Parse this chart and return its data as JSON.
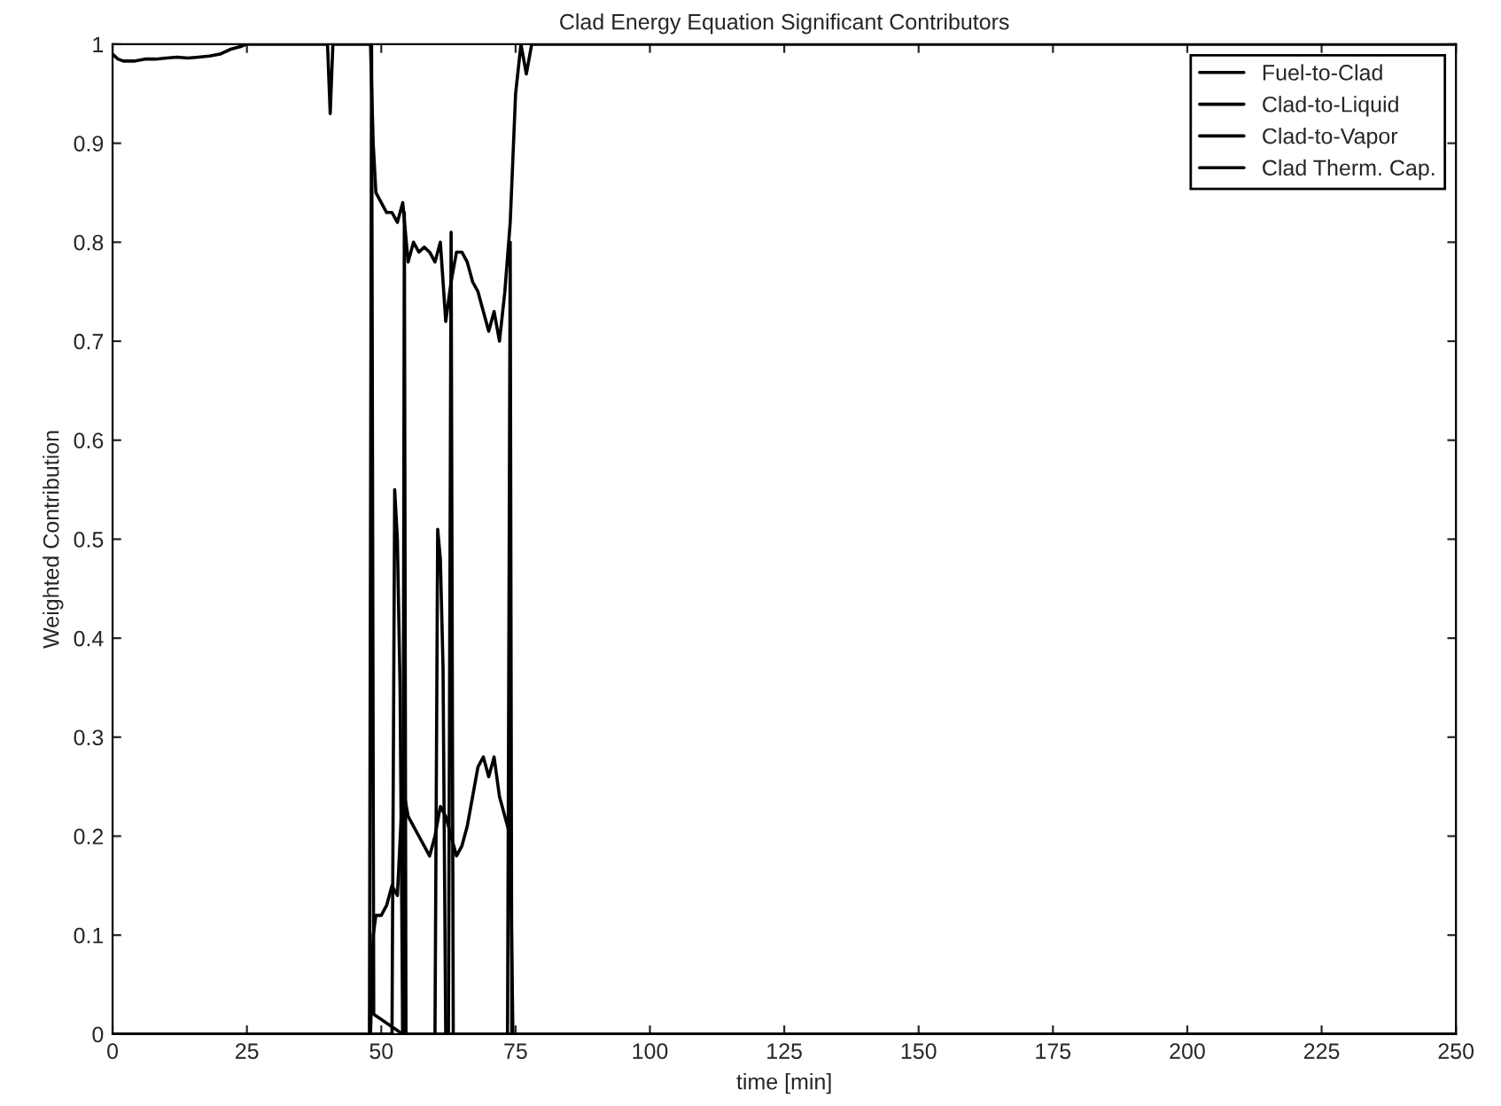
{
  "chart_data": {
    "type": "line",
    "title": "Clad Energy Equation Significant Contributors",
    "xlabel": "time [min]",
    "ylabel": "Weighted Contribution",
    "xlim": [
      0,
      250
    ],
    "ylim": [
      0,
      1
    ],
    "xticks": [
      0,
      25,
      50,
      75,
      100,
      125,
      150,
      175,
      200,
      225,
      250
    ],
    "yticks": [
      0,
      0.1,
      0.2,
      0.3,
      0.4,
      0.5,
      0.6,
      0.7,
      0.8,
      0.9,
      1
    ],
    "grid": false,
    "legend": "top right",
    "line_style": "solid",
    "marker": "none",
    "series": [
      {
        "name": "Fuel-to-Clad",
        "color": "#000000",
        "x": [
          0,
          1,
          2,
          4,
          6,
          8,
          10,
          12,
          14,
          16,
          18,
          20,
          22,
          24,
          25,
          40,
          40.5,
          41,
          48,
          48.5,
          49,
          50,
          51,
          52,
          53,
          54,
          55,
          56,
          57,
          58,
          59,
          60,
          61,
          62,
          63,
          64,
          65,
          66,
          67,
          68,
          69,
          70,
          71,
          72,
          73,
          74,
          75,
          76,
          77,
          78,
          250
        ],
        "values": [
          0.99,
          0.985,
          0.983,
          0.983,
          0.985,
          0.985,
          0.986,
          0.987,
          0.986,
          0.987,
          0.988,
          0.99,
          0.995,
          0.998,
          1,
          1,
          0.93,
          1,
          1,
          0.9,
          0.85,
          0.84,
          0.83,
          0.83,
          0.82,
          0.84,
          0.78,
          0.8,
          0.79,
          0.795,
          0.79,
          0.78,
          0.8,
          0.72,
          0.76,
          0.79,
          0.79,
          0.78,
          0.76,
          0.75,
          0.73,
          0.71,
          0.73,
          0.7,
          0.75,
          0.82,
          0.95,
          1,
          0.97,
          1,
          1
        ]
      },
      {
        "name": "Clad-to-Liquid",
        "color": "#000000",
        "x": [
          0,
          52,
          52.5,
          53,
          53.5,
          54,
          60,
          60.5,
          61,
          61.5,
          62,
          250
        ],
        "values": [
          0,
          0,
          0.55,
          0.5,
          0.35,
          0,
          0,
          0.51,
          0.48,
          0.37,
          0,
          0
        ]
      },
      {
        "name": "Clad-to-Vapor",
        "color": "#000000",
        "x": [
          0,
          48,
          48.5,
          49,
          50,
          51,
          52,
          53,
          54,
          55,
          56,
          57,
          58,
          59,
          60,
          61,
          62,
          63,
          64,
          65,
          66,
          67,
          68,
          69,
          70,
          71,
          72,
          73,
          74,
          74.5,
          250
        ],
        "values": [
          0,
          0,
          0.1,
          0.12,
          0.12,
          0.13,
          0.15,
          0.14,
          0.25,
          0.22,
          0.21,
          0.2,
          0.19,
          0.18,
          0.2,
          0.23,
          0.22,
          0.2,
          0.18,
          0.19,
          0.21,
          0.24,
          0.27,
          0.28,
          0.26,
          0.28,
          0.24,
          0.22,
          0.2,
          0,
          0
        ]
      },
      {
        "name": "Clad Therm. Cap.",
        "color": "#000000",
        "x": [
          0,
          47.8,
          48.2,
          48.6,
          54,
          54.3,
          54.6,
          62.5,
          63,
          63.4,
          73.5,
          74,
          74.3,
          250
        ],
        "values": [
          0,
          0,
          1,
          0.02,
          0,
          0.83,
          0,
          0,
          0.81,
          0,
          0,
          0.8,
          0,
          0
        ]
      }
    ]
  }
}
